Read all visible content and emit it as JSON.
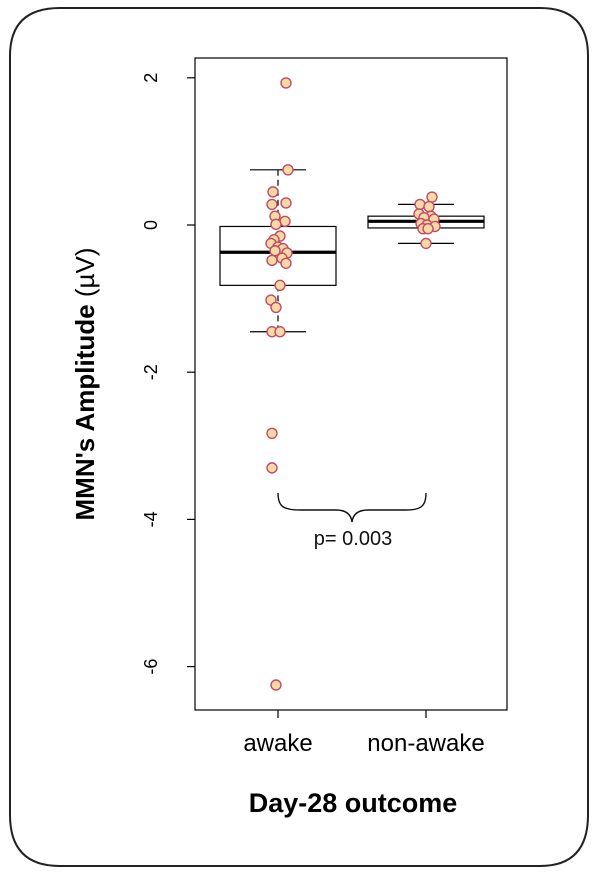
{
  "chart_data": {
    "type": "box",
    "categories": [
      "awake",
      "non-awake"
    ],
    "ylabel_bold": "MMN's Amplitude",
    "ylabel_unit": "(µV)",
    "xlabel": "Day-28 outcome",
    "ylim": [
      -6.6,
      2.25
    ],
    "yticks": [
      2,
      0,
      -2,
      -4,
      -6
    ],
    "ytick_labels": [
      "2",
      "0",
      "-2",
      "-4",
      "-6"
    ],
    "boxes": [
      {
        "category": "awake",
        "whisker_low": -1.45,
        "q1": -0.82,
        "median": -0.37,
        "q3": -0.02,
        "whisker_high": 0.75
      },
      {
        "category": "non-awake",
        "whisker_low": -0.25,
        "q1": -0.04,
        "median": 0.05,
        "q3": 0.12,
        "whisker_high": 0.28
      }
    ],
    "points": [
      {
        "category": "awake",
        "values": [
          1.93,
          0.75,
          0.45,
          0.28,
          0.3,
          0.12,
          0.05,
          0.01,
          -0.15,
          -0.2,
          -0.25,
          -0.3,
          -0.32,
          -0.35,
          -0.38,
          -0.45,
          -0.48,
          -0.52,
          -0.82,
          -1.02,
          -1.12,
          -1.45,
          -1.45,
          -2.83,
          -3.3,
          -6.25
        ],
        "jitter": [
          0.08,
          0.1,
          -0.05,
          -0.06,
          0.08,
          -0.03,
          0.07,
          -0.02,
          0.02,
          -0.04,
          -0.07,
          0.0,
          0.05,
          -0.03,
          0.09,
          0.04,
          -0.06,
          0.08,
          0.02,
          -0.07,
          -0.02,
          -0.06,
          0.02,
          -0.06,
          -0.06,
          -0.02
        ]
      },
      {
        "category": "non-awake",
        "values": [
          0.38,
          0.28,
          0.25,
          0.15,
          0.12,
          0.1,
          0.08,
          0.02,
          0.0,
          -0.02,
          -0.05,
          -0.05,
          -0.25
        ],
        "jitter": [
          0.06,
          -0.06,
          0.03,
          -0.07,
          0.05,
          -0.02,
          0.08,
          -0.05,
          0.01,
          0.09,
          -0.03,
          0.02,
          0.0
        ]
      }
    ],
    "point_fill": "#f7d9a6",
    "point_stroke": "#c24b66",
    "annotation": "p= 0.003"
  }
}
